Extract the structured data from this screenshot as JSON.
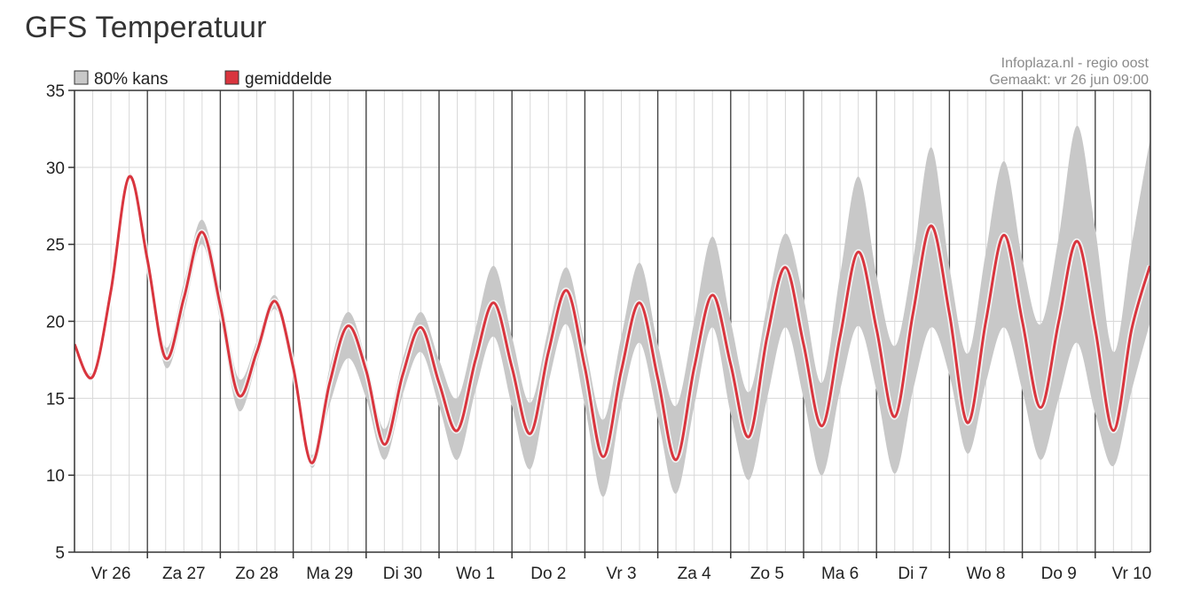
{
  "page": {
    "title": "GFS Temperatuur"
  },
  "chart_data": {
    "type": "line",
    "title": "GFS Temperatuur",
    "source_line1": "Infoplaza.nl - regio oost",
    "source_line2": "Gemaakt: vr 26 jun 09:00",
    "legend": [
      {
        "label": "80% kans",
        "color": "#c8c8c8"
      },
      {
        "label": "gemiddelde",
        "color": "#d9353e"
      }
    ],
    "legend_placement": "top-left",
    "grid": true,
    "ylim": [
      5,
      35
    ],
    "y_ticks": [
      5,
      10,
      15,
      20,
      25,
      30,
      35
    ],
    "x_days": [
      "Vr 26",
      "Za 27",
      "Zo 28",
      "Ma 29",
      "Di 30",
      "Wo 1",
      "Do 2",
      "Vr 3",
      "Za 4",
      "Zo 5",
      "Ma 6",
      "Di 7",
      "Wo 8",
      "Do 9",
      "Vr 10"
    ],
    "x_unit": "days from start of Vr 26",
    "x_range": [
      0,
      14.75
    ],
    "series": [
      {
        "name": "gemiddelde",
        "color": "#d9353e",
        "points": [
          [
            0.0,
            18.5
          ],
          [
            0.25,
            16.4
          ],
          [
            0.5,
            22.0
          ],
          [
            0.75,
            29.4
          ],
          [
            1.0,
            24.0
          ],
          [
            1.25,
            17.6
          ],
          [
            1.5,
            21.5
          ],
          [
            1.75,
            25.8
          ],
          [
            2.0,
            21.0
          ],
          [
            2.25,
            15.2
          ],
          [
            2.5,
            18.0
          ],
          [
            2.75,
            21.3
          ],
          [
            3.0,
            17.0
          ],
          [
            3.25,
            10.8
          ],
          [
            3.5,
            16.0
          ],
          [
            3.75,
            19.7
          ],
          [
            4.0,
            16.8
          ],
          [
            4.25,
            12.0
          ],
          [
            4.5,
            16.5
          ],
          [
            4.75,
            19.6
          ],
          [
            5.0,
            16.0
          ],
          [
            5.25,
            12.9
          ],
          [
            5.5,
            17.5
          ],
          [
            5.75,
            21.2
          ],
          [
            6.0,
            17.0
          ],
          [
            6.25,
            12.7
          ],
          [
            6.5,
            18.0
          ],
          [
            6.75,
            22.0
          ],
          [
            7.0,
            17.0
          ],
          [
            7.25,
            11.2
          ],
          [
            7.5,
            16.8
          ],
          [
            7.75,
            21.2
          ],
          [
            8.0,
            16.3
          ],
          [
            8.25,
            11.0
          ],
          [
            8.5,
            17.0
          ],
          [
            8.75,
            21.7
          ],
          [
            9.0,
            17.2
          ],
          [
            9.25,
            12.5
          ],
          [
            9.5,
            19.0
          ],
          [
            9.75,
            23.5
          ],
          [
            10.0,
            18.5
          ],
          [
            10.25,
            13.2
          ],
          [
            10.5,
            19.0
          ],
          [
            10.75,
            24.5
          ],
          [
            11.0,
            19.5
          ],
          [
            11.25,
            13.8
          ],
          [
            11.5,
            20.5
          ],
          [
            11.75,
            26.2
          ],
          [
            12.0,
            20.5
          ],
          [
            12.25,
            13.4
          ],
          [
            12.5,
            20.0
          ],
          [
            12.75,
            25.6
          ],
          [
            13.0,
            20.0
          ],
          [
            13.25,
            14.4
          ],
          [
            13.5,
            20.0
          ],
          [
            13.75,
            25.2
          ],
          [
            14.0,
            19.5
          ],
          [
            14.25,
            12.9
          ],
          [
            14.5,
            19.5
          ],
          [
            14.75,
            23.6
          ]
        ]
      }
    ],
    "band_80": {
      "name": "80% kans",
      "color": "#c8c8c8",
      "upper": [
        [
          0.0,
          18.6
        ],
        [
          0.25,
          16.7
        ],
        [
          0.5,
          22.3
        ],
        [
          0.75,
          29.6
        ],
        [
          1.0,
          24.5
        ],
        [
          1.25,
          18.3
        ],
        [
          1.5,
          22.5
        ],
        [
          1.75,
          26.6
        ],
        [
          2.0,
          22.0
        ],
        [
          2.25,
          16.3
        ],
        [
          2.5,
          18.7
        ],
        [
          2.75,
          21.7
        ],
        [
          3.0,
          17.6
        ],
        [
          3.25,
          11.3
        ],
        [
          3.5,
          17.0
        ],
        [
          3.75,
          20.6
        ],
        [
          4.0,
          17.5
        ],
        [
          4.25,
          13.0
        ],
        [
          4.5,
          17.5
        ],
        [
          4.75,
          20.6
        ],
        [
          5.0,
          17.5
        ],
        [
          5.25,
          15.0
        ],
        [
          5.5,
          19.5
        ],
        [
          5.75,
          23.6
        ],
        [
          6.0,
          19.0
        ],
        [
          6.25,
          14.7
        ],
        [
          6.5,
          19.5
        ],
        [
          6.75,
          23.5
        ],
        [
          7.0,
          18.5
        ],
        [
          7.25,
          13.6
        ],
        [
          7.5,
          19.0
        ],
        [
          7.75,
          23.8
        ],
        [
          8.0,
          18.5
        ],
        [
          8.25,
          14.5
        ],
        [
          8.5,
          20.0
        ],
        [
          8.75,
          25.5
        ],
        [
          9.0,
          20.0
        ],
        [
          9.25,
          15.4
        ],
        [
          9.5,
          21.0
        ],
        [
          9.75,
          25.7
        ],
        [
          10.0,
          21.5
        ],
        [
          10.25,
          16.0
        ],
        [
          10.5,
          23.0
        ],
        [
          10.75,
          29.4
        ],
        [
          11.0,
          23.0
        ],
        [
          11.25,
          18.4
        ],
        [
          11.5,
          24.0
        ],
        [
          11.75,
          31.3
        ],
        [
          12.0,
          23.5
        ],
        [
          12.25,
          17.9
        ],
        [
          12.5,
          24.5
        ],
        [
          12.75,
          30.4
        ],
        [
          13.0,
          24.0
        ],
        [
          13.25,
          19.8
        ],
        [
          13.5,
          25.5
        ],
        [
          13.75,
          32.7
        ],
        [
          14.0,
          26.0
        ],
        [
          14.25,
          18.0
        ],
        [
          14.5,
          25.0
        ],
        [
          14.75,
          31.8
        ]
      ],
      "lower": [
        [
          0.0,
          18.4
        ],
        [
          0.25,
          16.2
        ],
        [
          0.5,
          21.7
        ],
        [
          0.75,
          29.2
        ],
        [
          1.0,
          23.3
        ],
        [
          1.25,
          17.0
        ],
        [
          1.5,
          20.5
        ],
        [
          1.75,
          25.0
        ],
        [
          2.0,
          20.0
        ],
        [
          2.25,
          14.2
        ],
        [
          2.5,
          17.3
        ],
        [
          2.75,
          20.8
        ],
        [
          3.0,
          16.4
        ],
        [
          3.25,
          10.5
        ],
        [
          3.5,
          14.6
        ],
        [
          3.75,
          17.6
        ],
        [
          4.0,
          15.0
        ],
        [
          4.25,
          11.0
        ],
        [
          4.5,
          15.2
        ],
        [
          4.75,
          18.0
        ],
        [
          5.0,
          14.5
        ],
        [
          5.25,
          11.0
        ],
        [
          5.5,
          15.5
        ],
        [
          5.75,
          19.0
        ],
        [
          6.0,
          14.5
        ],
        [
          6.25,
          10.4
        ],
        [
          6.5,
          16.0
        ],
        [
          6.75,
          19.8
        ],
        [
          7.0,
          14.5
        ],
        [
          7.25,
          8.6
        ],
        [
          7.5,
          14.5
        ],
        [
          7.75,
          18.6
        ],
        [
          8.0,
          13.7
        ],
        [
          8.25,
          8.8
        ],
        [
          8.5,
          14.5
        ],
        [
          8.75,
          19.6
        ],
        [
          9.0,
          14.0
        ],
        [
          9.25,
          9.7
        ],
        [
          9.5,
          15.0
        ],
        [
          9.75,
          19.6
        ],
        [
          10.0,
          15.0
        ],
        [
          10.25,
          10.0
        ],
        [
          10.5,
          15.5
        ],
        [
          10.75,
          19.7
        ],
        [
          11.0,
          15.5
        ],
        [
          11.25,
          10.1
        ],
        [
          11.5,
          15.5
        ],
        [
          11.75,
          19.6
        ],
        [
          12.0,
          16.5
        ],
        [
          12.25,
          11.4
        ],
        [
          12.5,
          16.0
        ],
        [
          12.75,
          19.6
        ],
        [
          13.0,
          15.5
        ],
        [
          13.25,
          11.0
        ],
        [
          13.5,
          15.0
        ],
        [
          13.75,
          18.6
        ],
        [
          14.0,
          14.0
        ],
        [
          14.25,
          10.6
        ],
        [
          14.5,
          15.5
        ],
        [
          14.75,
          19.9
        ]
      ]
    }
  }
}
